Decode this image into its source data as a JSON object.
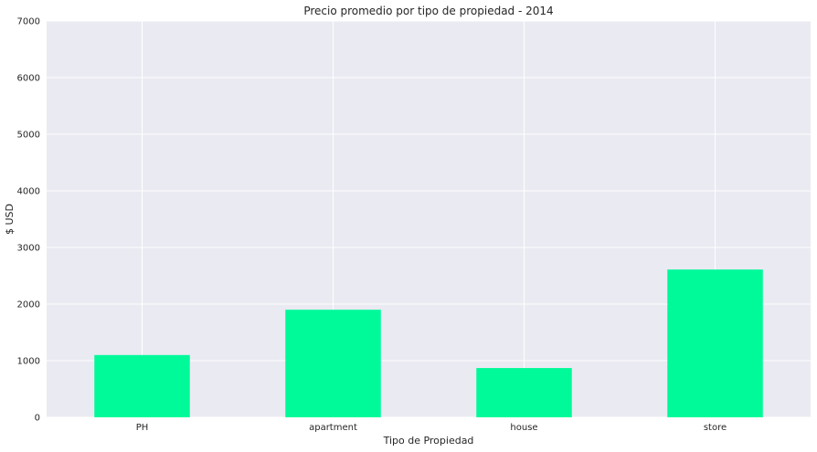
{
  "chart_data": {
    "type": "bar",
    "title": "Precio promedio por tipo de propiedad - 2014",
    "xlabel": "Tipo de Propiedad",
    "ylabel": "$ USD",
    "categories": [
      "PH",
      "apartment",
      "house",
      "store"
    ],
    "values": [
      1100,
      1900,
      870,
      2610
    ],
    "ylim": [
      0,
      7000
    ],
    "yticks": [
      0,
      1000,
      2000,
      3000,
      4000,
      5000,
      6000,
      7000
    ],
    "grid": true,
    "bar_color": "#00fa9a",
    "background_color": "#eaeaf2",
    "grid_color": "#ffffff"
  }
}
